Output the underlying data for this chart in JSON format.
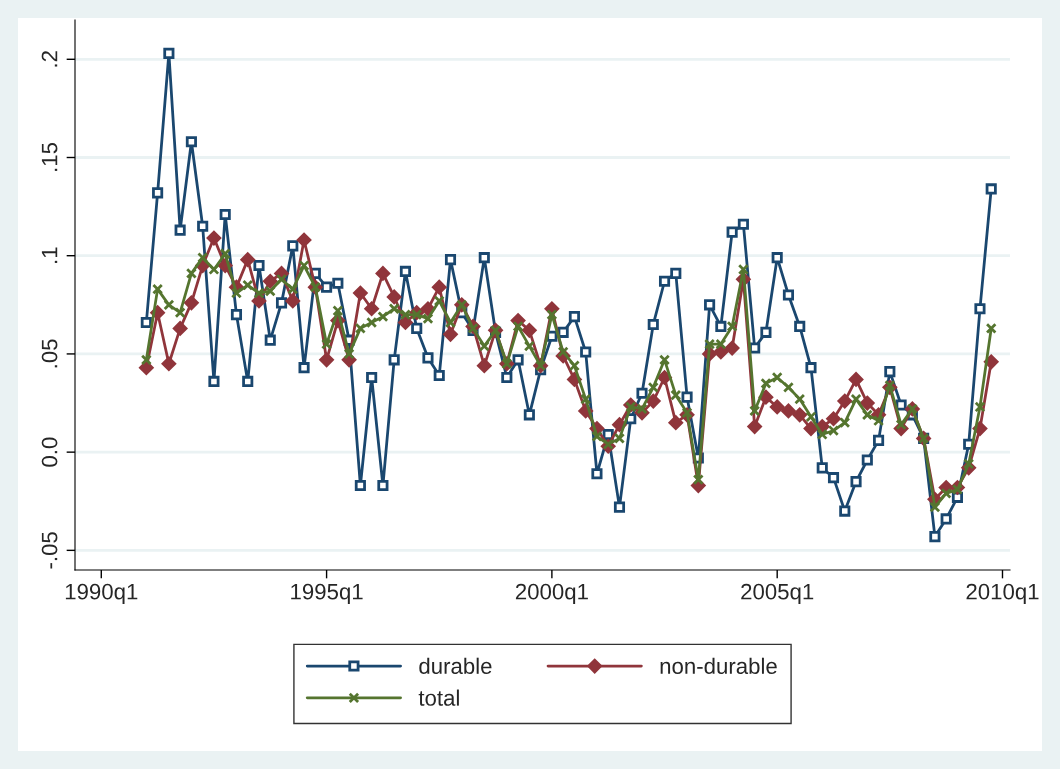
{
  "chart_data": {
    "type": "line",
    "xlim": [
      "1989-06",
      "2010-03"
    ],
    "ylim": [
      -0.06,
      0.22
    ],
    "xticks": [
      {
        "value": "1990-01",
        "label": "1990q1"
      },
      {
        "value": "1995-01",
        "label": "1995q1"
      },
      {
        "value": "2000-01",
        "label": "2000q1"
      },
      {
        "value": "2005-01",
        "label": "2005q1"
      },
      {
        "value": "2010-01",
        "label": "2010q1"
      }
    ],
    "yticks": [
      {
        "value": -0.05,
        "label": "-.05"
      },
      {
        "value": 0,
        "label": "0.0"
      },
      {
        "value": 0.05,
        "label": ".05"
      },
      {
        "value": 0.1,
        "label": ".1"
      },
      {
        "value": 0.15,
        "label": ".15"
      },
      {
        "value": 0.2,
        "label": ".2"
      }
    ],
    "grid": "y",
    "legend": "bottom",
    "line_style": "solid",
    "x": [
      "1991-01",
      "1991-04",
      "1991-07",
      "1991-10",
      "1992-01",
      "1992-04",
      "1992-07",
      "1992-10",
      "1993-01",
      "1993-04",
      "1993-07",
      "1993-10",
      "1994-01",
      "1994-04",
      "1994-07",
      "1994-10",
      "1995-01",
      "1995-04",
      "1995-07",
      "1995-10",
      "1996-01",
      "1996-04",
      "1996-07",
      "1996-10",
      "1997-01",
      "1997-04",
      "1997-07",
      "1997-10",
      "1998-01",
      "1998-04",
      "1998-07",
      "1998-10",
      "1999-01",
      "1999-04",
      "1999-07",
      "1999-10",
      "2000-01",
      "2000-04",
      "2000-07",
      "2000-10",
      "2001-01",
      "2001-04",
      "2001-07",
      "2001-10",
      "2002-01",
      "2002-04",
      "2002-07",
      "2002-10",
      "2003-01",
      "2003-04",
      "2003-07",
      "2003-10",
      "2004-01",
      "2004-04",
      "2004-07",
      "2004-10",
      "2005-01",
      "2005-04",
      "2005-07",
      "2005-10",
      "2006-01",
      "2006-04",
      "2006-07",
      "2006-10",
      "2007-01",
      "2007-04",
      "2007-07",
      "2007-10",
      "2008-01",
      "2008-04",
      "2008-07",
      "2008-10",
      "2009-01",
      "2009-04",
      "2009-07",
      "2009-10"
    ],
    "series": [
      {
        "name": "durable",
        "color": "#1a476f",
        "marker": "square",
        "values": [
          0.066,
          0.132,
          0.203,
          0.113,
          0.158,
          0.115,
          0.036,
          0.121,
          0.07,
          0.036,
          0.095,
          0.057,
          0.076,
          0.105,
          0.043,
          0.091,
          0.084,
          0.086,
          0.057,
          -0.017,
          0.038,
          -0.017,
          0.047,
          0.092,
          0.063,
          0.048,
          0.039,
          0.098,
          0.071,
          0.062,
          0.099,
          0.061,
          0.038,
          0.047,
          0.019,
          0.042,
          0.059,
          0.061,
          0.069,
          0.051,
          -0.011,
          0.009,
          -0.028,
          0.017,
          0.03,
          0.065,
          0.087,
          0.091,
          0.028,
          -0.003,
          0.075,
          0.064,
          0.112,
          0.116,
          0.053,
          0.061,
          0.099,
          0.08,
          0.064,
          0.043,
          -0.008,
          -0.013,
          -0.03,
          -0.015,
          -0.004,
          0.006,
          0.041,
          0.024,
          0.019,
          0.007,
          -0.043,
          -0.034,
          -0.023,
          0.004,
          0.073,
          0.134
        ]
      },
      {
        "name": "non-durable",
        "color": "#90353b",
        "marker": "diamond",
        "values": [
          0.043,
          0.071,
          0.045,
          0.063,
          0.076,
          0.095,
          0.109,
          0.095,
          0.084,
          0.098,
          0.077,
          0.087,
          0.091,
          0.077,
          0.108,
          0.084,
          0.047,
          0.067,
          0.047,
          0.081,
          0.073,
          0.091,
          0.079,
          0.066,
          0.071,
          0.073,
          0.084,
          0.06,
          0.075,
          0.064,
          0.044,
          0.062,
          0.045,
          0.067,
          0.062,
          0.044,
          0.073,
          0.049,
          0.037,
          0.021,
          0.012,
          0.003,
          0.014,
          0.024,
          0.02,
          0.026,
          0.038,
          0.015,
          0.019,
          -0.017,
          0.05,
          0.051,
          0.053,
          0.088,
          0.013,
          0.028,
          0.023,
          0.021,
          0.019,
          0.012,
          0.013,
          0.017,
          0.026,
          0.037,
          0.025,
          0.019,
          0.033,
          0.012,
          0.022,
          0.007,
          -0.024,
          -0.018,
          -0.018,
          -0.008,
          0.012,
          0.046
        ]
      },
      {
        "name": "total",
        "color": "#55752f",
        "marker": "cross",
        "values": [
          0.047,
          0.083,
          0.075,
          0.071,
          0.091,
          0.099,
          0.093,
          0.101,
          0.081,
          0.085,
          0.081,
          0.082,
          0.088,
          0.083,
          0.095,
          0.084,
          0.055,
          0.072,
          0.05,
          0.063,
          0.066,
          0.069,
          0.073,
          0.07,
          0.07,
          0.068,
          0.077,
          0.066,
          0.075,
          0.063,
          0.054,
          0.062,
          0.045,
          0.064,
          0.054,
          0.044,
          0.07,
          0.051,
          0.044,
          0.027,
          0.008,
          0.004,
          0.007,
          0.023,
          0.022,
          0.033,
          0.047,
          0.029,
          0.02,
          -0.014,
          0.055,
          0.055,
          0.064,
          0.093,
          0.021,
          0.035,
          0.038,
          0.033,
          0.027,
          0.018,
          0.009,
          0.011,
          0.015,
          0.027,
          0.019,
          0.016,
          0.034,
          0.014,
          0.022,
          0.007,
          -0.028,
          -0.021,
          -0.019,
          -0.006,
          0.023,
          0.063
        ]
      }
    ]
  }
}
